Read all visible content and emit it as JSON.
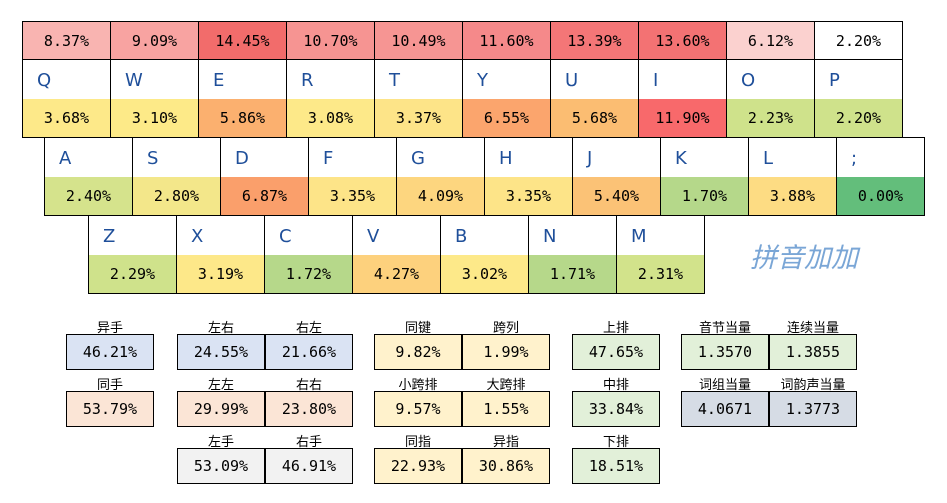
{
  "top_row": [
    {
      "value": "8.37%",
      "color": "#f9b4b1"
    },
    {
      "value": "9.09%",
      "color": "#f8a3a1"
    },
    {
      "value": "14.45%",
      "color": "#f26c6b"
    },
    {
      "value": "10.70%",
      "color": "#f69492"
    },
    {
      "value": "10.49%",
      "color": "#f69593"
    },
    {
      "value": "11.60%",
      "color": "#f5898a"
    },
    {
      "value": "13.39%",
      "color": "#f47677"
    },
    {
      "value": "13.60%",
      "color": "#f37273"
    },
    {
      "value": "6.12%",
      "color": "#fbd1cf"
    },
    {
      "value": "2.20%",
      "color": "#ffffff"
    }
  ],
  "keyboard": {
    "row1": [
      {
        "key": "Q",
        "pct": "3.68%",
        "color": "#fde989"
      },
      {
        "key": "W",
        "pct": "3.10%",
        "color": "#fdea88"
      },
      {
        "key": "E",
        "pct": "5.86%",
        "color": "#fbb06f"
      },
      {
        "key": "R",
        "pct": "3.08%",
        "color": "#fde989"
      },
      {
        "key": "T",
        "pct": "3.37%",
        "color": "#fde488"
      },
      {
        "key": "Y",
        "pct": "6.55%",
        "color": "#fba56d"
      },
      {
        "key": "U",
        "pct": "5.68%",
        "color": "#fbbd72"
      },
      {
        "key": "I",
        "pct": "11.90%",
        "color": "#f8696b"
      },
      {
        "key": "O",
        "pct": "2.23%",
        "color": "#cfe28b"
      },
      {
        "key": "P",
        "pct": "2.20%",
        "color": "#cfe28b"
      }
    ],
    "row2": [
      {
        "key": "A",
        "pct": "2.40%",
        "color": "#d5e38c"
      },
      {
        "key": "S",
        "pct": "2.80%",
        "color": "#f3e78a"
      },
      {
        "key": "D",
        "pct": "6.87%",
        "color": "#fa9f6b"
      },
      {
        "key": "F",
        "pct": "3.35%",
        "color": "#fde488"
      },
      {
        "key": "G",
        "pct": "4.09%",
        "color": "#fdd67f"
      },
      {
        "key": "H",
        "pct": "3.35%",
        "color": "#fde488"
      },
      {
        "key": "J",
        "pct": "5.40%",
        "color": "#fbc276"
      },
      {
        "key": "K",
        "pct": "1.70%",
        "color": "#b5d88a"
      },
      {
        "key": "L",
        "pct": "3.88%",
        "color": "#fddc83"
      },
      {
        "key": ";",
        "pct": "0.00%",
        "color": "#63be7b"
      }
    ],
    "row3": [
      {
        "key": "Z",
        "pct": "2.29%",
        "color": "#cfe28b"
      },
      {
        "key": "X",
        "pct": "3.19%",
        "color": "#fde889"
      },
      {
        "key": "C",
        "pct": "1.72%",
        "color": "#b6d88a"
      },
      {
        "key": "V",
        "pct": "4.27%",
        "color": "#fdd17d"
      },
      {
        "key": "B",
        "pct": "3.02%",
        "color": "#fde989"
      },
      {
        "key": "N",
        "pct": "1.71%",
        "color": "#b6d88a"
      },
      {
        "key": "M",
        "pct": "2.31%",
        "color": "#d2e38b"
      }
    ]
  },
  "brand": "拼音加加",
  "stats": {
    "hand": {
      "labels": [
        "异手",
        "同手"
      ],
      "values": [
        "46.21%",
        "53.79%"
      ],
      "colors": [
        "#dae3f3",
        "#fbe5d6"
      ]
    },
    "direction": {
      "labels": [
        "左右",
        "右左",
        "左左",
        "右右",
        "左手",
        "右手"
      ],
      "values": [
        "24.55%",
        "21.66%",
        "29.99%",
        "23.80%",
        "53.09%",
        "46.91%"
      ],
      "colors": [
        "#dae3f3",
        "#dae3f3",
        "#fbe5d6",
        "#fbe5d6",
        "#f2f2f2",
        "#f2f2f2"
      ]
    },
    "span": {
      "labels": [
        "同键",
        "跨列",
        "小跨排",
        "大跨排",
        "同指",
        "异指"
      ],
      "values": [
        "9.82%",
        "1.99%",
        "9.57%",
        "1.55%",
        "22.93%",
        "30.86%"
      ],
      "colors": [
        "#fff2cc",
        "#fff2cc",
        "#fff2cc",
        "#fff2cc",
        "#fff2cc",
        "#fff2cc"
      ]
    },
    "rows": {
      "labels": [
        "上排",
        "中排",
        "下排"
      ],
      "values": [
        "47.65%",
        "33.84%",
        "18.51%"
      ],
      "colors": [
        "#e2f0d9",
        "#e2f0d9",
        "#e2f0d9"
      ]
    },
    "equiv": {
      "labels": [
        "音节当量",
        "连续当量",
        "词组当量",
        "词韵声当量"
      ],
      "values": [
        "1.3570",
        "1.3855",
        "4.0671",
        "1.3773"
      ],
      "colors": [
        "#e2f0d9",
        "#e2f0d9",
        "#d6dce5",
        "#d6dce5"
      ]
    }
  }
}
